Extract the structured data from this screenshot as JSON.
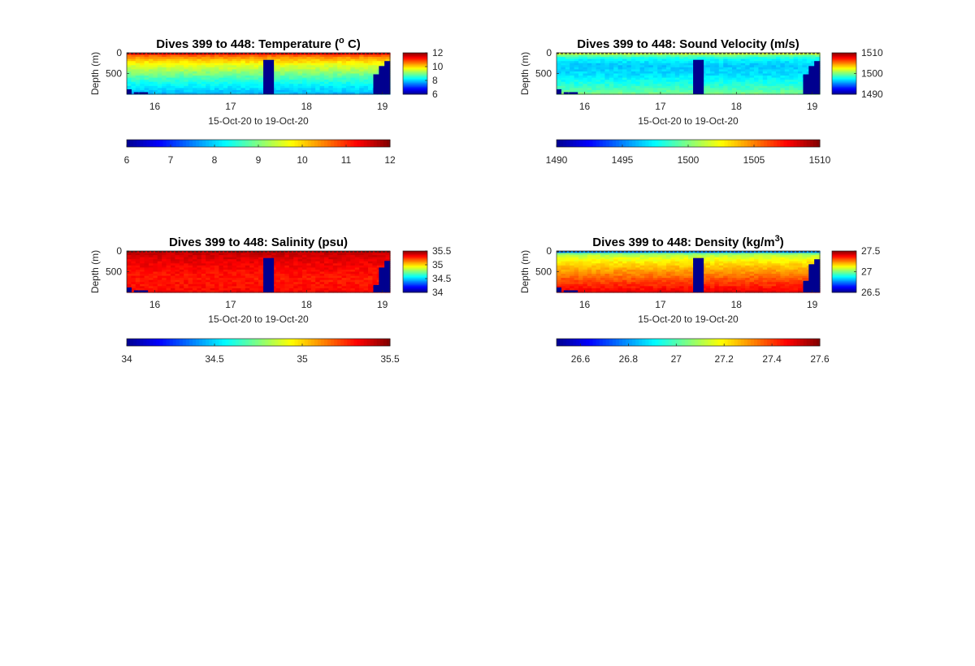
{
  "window": {
    "background": "#ffffff"
  },
  "colormap": [
    "#00008f",
    "#0000ff",
    "#0080ff",
    "#00ffff",
    "#80ff80",
    "#ffff00",
    "#ff8000",
    "#ff0000",
    "#800000"
  ],
  "chart_data": [
    {
      "type": "heatmap",
      "title": "Dives 399 to 448: Temperature (",
      "title_unit_sup": "o",
      "title_unit_end": " C)",
      "xlabel": "15-Oct-20 to 19-Oct-20",
      "ylabel": "Depth (m)",
      "x_ticks": [
        "16",
        "17",
        "18",
        "19"
      ],
      "x_tick_values": [
        16,
        17,
        18,
        19
      ],
      "xlim": [
        15.63,
        19.1
      ],
      "y_ticks": [
        "0",
        "500"
      ],
      "y_tick_values": [
        0,
        500
      ],
      "ylim": [
        0,
        1000
      ],
      "clim": [
        6,
        12
      ],
      "side_cbar_ticks": [
        "12",
        "10",
        "8",
        "6"
      ],
      "side_cbar_values": [
        12,
        10,
        8,
        6
      ],
      "bottom_cbar_ticks": [
        "6",
        "7",
        "8",
        "9",
        "10",
        "11",
        "12"
      ],
      "bottom_cbar_values": [
        6,
        7,
        8,
        9,
        10,
        11,
        12
      ],
      "profile": {
        "depths": [
          0,
          50,
          150,
          300,
          500,
          700,
          900,
          1000
        ],
        "values": [
          11.8,
          10.8,
          10.2,
          9.6,
          9.0,
          8.4,
          8.0,
          7.8
        ]
      },
      "gaps": [
        {
          "x0": 17.43,
          "x1": 17.57,
          "depth_top": 170
        }
      ],
      "right_gap": {
        "x0": 18.88,
        "depths_top": [
          520,
          320,
          200
        ]
      },
      "left_gap": {
        "x0": 15.63,
        "x1": 15.9,
        "depth_top": 880
      },
      "dashed_surface": true
    },
    {
      "type": "heatmap",
      "title": "Dives 399 to 448: Sound Velocity (m/s)",
      "xlabel": "15-Oct-20 to 19-Oct-20",
      "ylabel": "Depth (m)",
      "x_ticks": [
        "16",
        "17",
        "18",
        "19"
      ],
      "x_tick_values": [
        16,
        17,
        18,
        19
      ],
      "xlim": [
        15.63,
        19.1
      ],
      "y_ticks": [
        "0",
        "500"
      ],
      "y_tick_values": [
        0,
        500
      ],
      "ylim": [
        0,
        1000
      ],
      "clim": [
        1490,
        1510
      ],
      "side_cbar_ticks": [
        "1510",
        "1500",
        "1490"
      ],
      "side_cbar_values": [
        1510,
        1500,
        1490
      ],
      "bottom_cbar_ticks": [
        "1490",
        "1495",
        "1500",
        "1505",
        "1510"
      ],
      "bottom_cbar_values": [
        1490,
        1495,
        1500,
        1505,
        1510
      ],
      "profile": {
        "depths": [
          0,
          50,
          150,
          300,
          500,
          700,
          900,
          1000
        ],
        "values": [
          1503,
          1500,
          1497.5,
          1496.5,
          1496.8,
          1497.8,
          1499,
          1500
        ]
      },
      "gaps": [
        {
          "x0": 17.43,
          "x1": 17.57,
          "depth_top": 170
        }
      ],
      "right_gap": {
        "x0": 18.88,
        "depths_top": [
          520,
          320,
          200
        ]
      },
      "left_gap": {
        "x0": 15.63,
        "x1": 15.9,
        "depth_top": 880
      },
      "dashed_surface": true
    },
    {
      "type": "heatmap",
      "title": "Dives 399 to 448: Salinity (psu)",
      "xlabel": "15-Oct-20 to 19-Oct-20",
      "ylabel": "Depth (m)",
      "x_ticks": [
        "16",
        "17",
        "18",
        "19"
      ],
      "x_tick_values": [
        16,
        17,
        18,
        19
      ],
      "xlim": [
        15.63,
        19.1
      ],
      "y_ticks": [
        "0",
        "500"
      ],
      "y_tick_values": [
        0,
        500
      ],
      "ylim": [
        0,
        1000
      ],
      "clim": [
        34,
        35.5
      ],
      "side_cbar_ticks": [
        "35.5",
        "35",
        "34.5",
        "34"
      ],
      "side_cbar_values": [
        35.5,
        35,
        34.5,
        34
      ],
      "bottom_cbar_ticks": [
        "34",
        "34.5",
        "35",
        "35.5"
      ],
      "bottom_cbar_values": [
        34,
        34.5,
        35,
        35.5
      ],
      "profile": {
        "depths": [
          0,
          100,
          300,
          500,
          700,
          900,
          1000
        ],
        "values": [
          35.42,
          35.38,
          35.33,
          35.3,
          35.28,
          35.3,
          35.32
        ]
      },
      "gaps": [
        {
          "x0": 17.43,
          "x1": 17.57,
          "depth_top": 170
        }
      ],
      "right_gap": {
        "x0": 18.88,
        "depths_top": [
          820,
          400,
          240
        ]
      },
      "left_gap": {
        "x0": 15.63,
        "x1": 15.9,
        "depth_top": 880
      },
      "dashed_surface": true
    },
    {
      "type": "heatmap",
      "title": "Dives 399 to 448: Density (kg/m",
      "title_unit_sup": "3",
      "title_unit_end": ")",
      "xlabel": "15-Oct-20 to 19-Oct-20",
      "ylabel": "Depth (m)",
      "x_ticks": [
        "16",
        "17",
        "18",
        "19"
      ],
      "x_tick_values": [
        16,
        17,
        18,
        19
      ],
      "xlim": [
        15.63,
        19.1
      ],
      "y_ticks": [
        "0",
        "500"
      ],
      "y_tick_values": [
        0,
        500
      ],
      "ylim": [
        0,
        1000
      ],
      "clim": [
        26.5,
        27.6
      ],
      "side_cbar_ticks": [
        "27.5",
        "27",
        "26.5"
      ],
      "side_cbar_values": [
        27.5,
        27,
        26.5
      ],
      "bottom_cbar_ticks": [
        "26.6",
        "26.8",
        "27",
        "27.2",
        "27.4",
        "27.6"
      ],
      "bottom_cbar_values": [
        26.6,
        26.8,
        27,
        27.2,
        27.4,
        27.6
      ],
      "profile": {
        "depths": [
          0,
          60,
          150,
          300,
          500,
          700,
          900,
          1000
        ],
        "values": [
          26.6,
          27.05,
          27.15,
          27.22,
          27.3,
          27.38,
          27.45,
          27.48
        ]
      },
      "gaps": [
        {
          "x0": 17.43,
          "x1": 17.57,
          "depth_top": 170
        }
      ],
      "right_gap": {
        "x0": 18.88,
        "depths_top": [
          720,
          320,
          200
        ]
      },
      "left_gap": {
        "x0": 15.63,
        "x1": 15.9,
        "depth_top": 880
      },
      "dashed_surface": true
    }
  ]
}
